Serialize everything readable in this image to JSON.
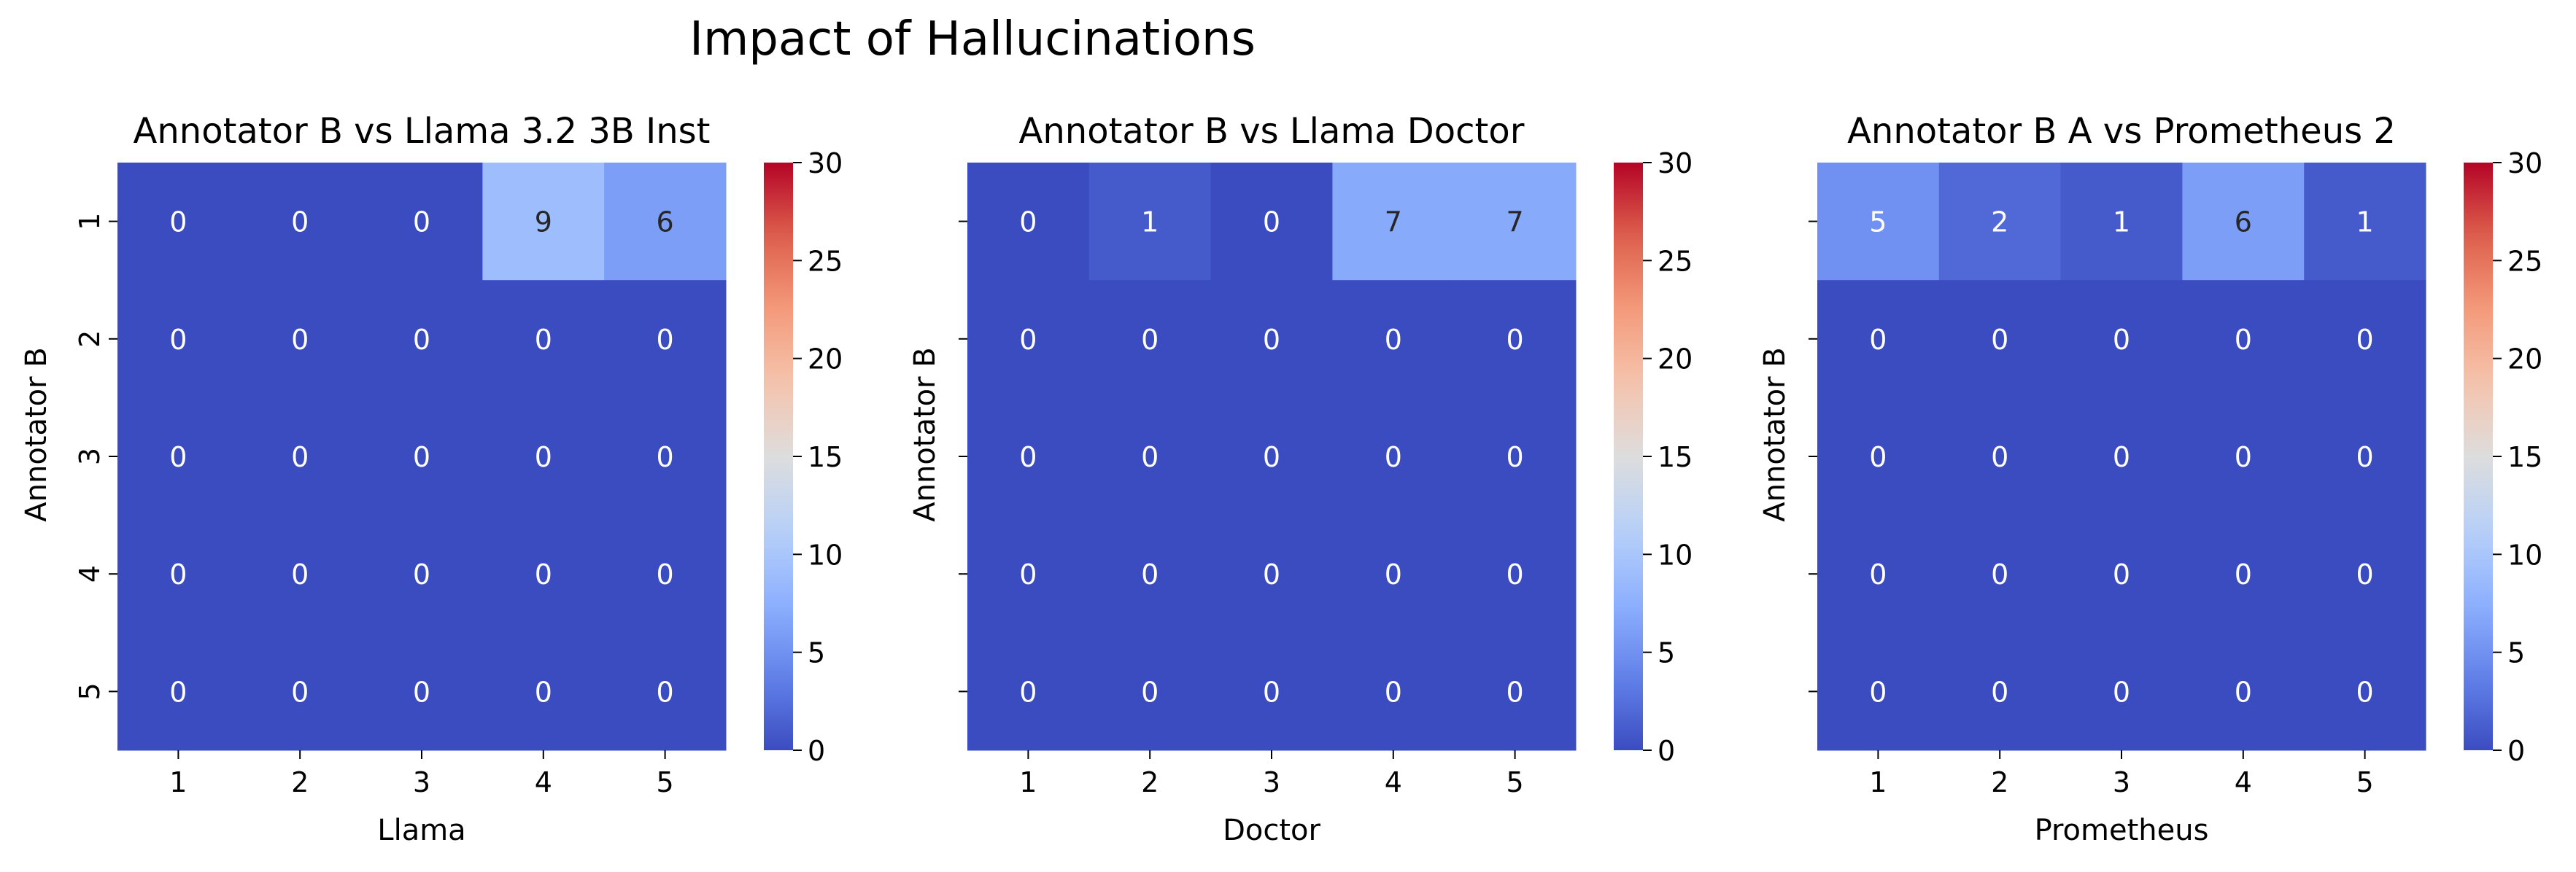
{
  "figure": {
    "title": "Impact of Hallucinations"
  },
  "chart_data": [
    {
      "type": "heatmap",
      "title": "Annotator B vs Llama 3.2 3B Inst",
      "xlabel": "Llama",
      "ylabel": "Annotator B",
      "x_categories": [
        "1",
        "2",
        "3",
        "4",
        "5"
      ],
      "y_categories": [
        "1",
        "2",
        "3",
        "4",
        "5"
      ],
      "values": [
        [
          0,
          0,
          0,
          9,
          6
        ],
        [
          0,
          0,
          0,
          0,
          0
        ],
        [
          0,
          0,
          0,
          0,
          0
        ],
        [
          0,
          0,
          0,
          0,
          0
        ],
        [
          0,
          0,
          0,
          0,
          0
        ]
      ],
      "colorbar": {
        "vmin": 0,
        "vmax": 30,
        "ticks": [
          0,
          5,
          10,
          15,
          20,
          25,
          30
        ],
        "colormap": "coolwarm"
      },
      "show_y_tick_labels": true
    },
    {
      "type": "heatmap",
      "title": "Annotator B vs Llama Doctor",
      "xlabel": "Doctor",
      "ylabel": "Annotator B",
      "x_categories": [
        "1",
        "2",
        "3",
        "4",
        "5"
      ],
      "y_categories": [
        "1",
        "2",
        "3",
        "4",
        "5"
      ],
      "values": [
        [
          0,
          1,
          0,
          7,
          7
        ],
        [
          0,
          0,
          0,
          0,
          0
        ],
        [
          0,
          0,
          0,
          0,
          0
        ],
        [
          0,
          0,
          0,
          0,
          0
        ],
        [
          0,
          0,
          0,
          0,
          0
        ]
      ],
      "colorbar": {
        "vmin": 0,
        "vmax": 30,
        "ticks": [
          0,
          5,
          10,
          15,
          20,
          25,
          30
        ],
        "colormap": "coolwarm"
      },
      "show_y_tick_labels": false
    },
    {
      "type": "heatmap",
      "title": "Annotator B A vs Prometheus 2",
      "xlabel": "Prometheus",
      "ylabel": "Annotator B",
      "x_categories": [
        "1",
        "2",
        "3",
        "4",
        "5"
      ],
      "y_categories": [
        "1",
        "2",
        "3",
        "4",
        "5"
      ],
      "values": [
        [
          5,
          2,
          1,
          6,
          1
        ],
        [
          0,
          0,
          0,
          0,
          0
        ],
        [
          0,
          0,
          0,
          0,
          0
        ],
        [
          0,
          0,
          0,
          0,
          0
        ],
        [
          0,
          0,
          0,
          0,
          0
        ]
      ],
      "colorbar": {
        "vmin": 0,
        "vmax": 30,
        "ticks": [
          0,
          5,
          10,
          15,
          20,
          25,
          30
        ],
        "colormap": "coolwarm"
      },
      "show_y_tick_labels": false
    }
  ]
}
